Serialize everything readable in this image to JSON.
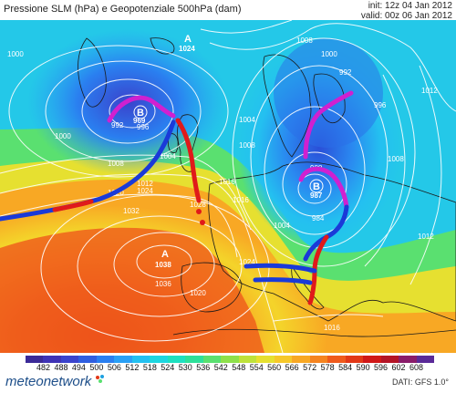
{
  "header": {
    "title": "Pressione SLM (hPa) e Geopotenziale 500hPa (dam)",
    "init": "init: 12z 04 Jan 2012",
    "valid": "valid: 00z 06 Jan 2012"
  },
  "centers": {
    "high_west": {
      "letter": "A",
      "value": "1038"
    },
    "high_north": {
      "letter": "A",
      "value": "1024"
    },
    "low_west": {
      "letter": "B",
      "value": "969"
    },
    "low_central": {
      "letter": "B",
      "value": "987"
    }
  },
  "isobars": [
    "1000",
    "992",
    "996",
    "1000",
    "1004",
    "1008",
    "1012",
    "1016",
    "1020",
    "1024",
    "1028",
    "1032",
    "1036",
    "1008",
    "1000",
    "992",
    "996",
    "1004",
    "1008",
    "1012",
    "1016",
    "1024",
    "1020",
    "988",
    "984",
    "1004",
    "1008",
    "1012",
    "1016"
  ],
  "legend": {
    "colors": [
      "#3b2a98",
      "#3f33b6",
      "#3a43cc",
      "#2f5ee0",
      "#2a7ff0",
      "#2aa0f5",
      "#24c0f0",
      "#1ed6e0",
      "#1ee0c0",
      "#2ee09a",
      "#5ae070",
      "#8ee04a",
      "#bee23a",
      "#e6e030",
      "#f6c82a",
      "#f8a824",
      "#f58420",
      "#ef5a1c",
      "#e23818",
      "#d01818",
      "#b41426",
      "#8a1c6a",
      "#5a2a98"
    ],
    "labels": [
      "482",
      "488",
      "494",
      "500",
      "506",
      "512",
      "518",
      "524",
      "530",
      "536",
      "542",
      "548",
      "554",
      "560",
      "566",
      "572",
      "578",
      "584",
      "590",
      "596",
      "602",
      "608"
    ]
  },
  "footer": {
    "brand": "meteonetwork",
    "source": "DATI: GFS 1.0°"
  }
}
